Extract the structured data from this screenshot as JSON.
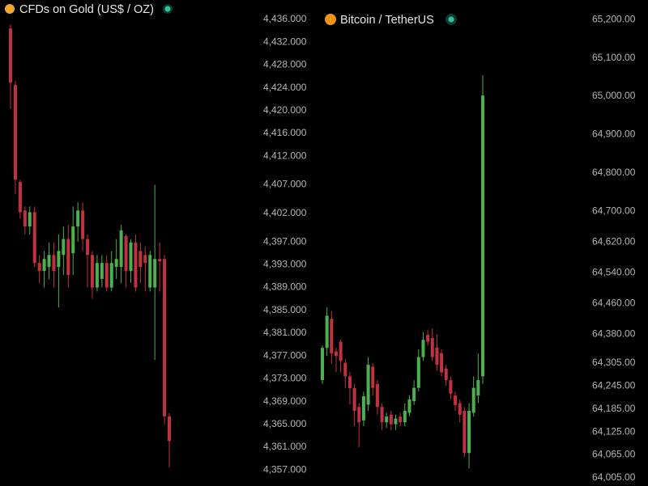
{
  "chart_data": [
    {
      "type": "candlestick",
      "title": "CFDs on Gold (US$ / OZ)",
      "up_color": "#4caf50",
      "down_color": "#c0323f",
      "ylim": [
        4354.2,
        4439.4
      ],
      "yticks": [
        {
          "value": 4436,
          "label": "4,436.000"
        },
        {
          "value": 4432,
          "label": "4,432.000"
        },
        {
          "value": 4428,
          "label": "4,428.000"
        },
        {
          "value": 4424,
          "label": "4,424.000"
        },
        {
          "value": 4420,
          "label": "4,420.000"
        },
        {
          "value": 4416,
          "label": "4,416.000"
        },
        {
          "value": 4412,
          "label": "4,412.000"
        },
        {
          "value": 4407,
          "label": "4,407.000"
        },
        {
          "value": 4402,
          "label": "4,402.000"
        },
        {
          "value": 4397,
          "label": "4,397.000"
        },
        {
          "value": 4393,
          "label": "4,393.000"
        },
        {
          "value": 4389,
          "label": "4,389.000"
        },
        {
          "value": 4385,
          "label": "4,385.000"
        },
        {
          "value": 4381,
          "label": "4,381.000"
        },
        {
          "value": 4377,
          "label": "4,377.000"
        },
        {
          "value": 4373,
          "label": "4,373.000"
        },
        {
          "value": 4369,
          "label": "4,369.000"
        },
        {
          "value": 4365,
          "label": "4,365.000"
        },
        {
          "value": 4361,
          "label": "4,361.000"
        },
        {
          "value": 4357,
          "label": "4,357.000"
        }
      ],
      "open": [
        4434.4,
        4424.5,
        4407.5,
        4402.5,
        4399.7,
        4402.2,
        4393.3,
        4391.9,
        4392.6,
        4394.7,
        4392.6,
        4394.7,
        4397.5,
        4395.0,
        4399.7,
        4402.5,
        4397.5,
        4394.7,
        4389.0,
        4390.5,
        4393.3,
        4389.0,
        4392.6,
        4392.6,
        4398.0,
        4391.9,
        4396.9,
        4395.4,
        4394.7,
        4389.0,
        4389.0,
        4394.0,
        4394.0,
        4366.4
      ],
      "high": [
        4435.1,
        4425.2,
        4407.9,
        4403.2,
        4403.2,
        4403.2,
        4394.7,
        4395.4,
        4396.9,
        4396.9,
        4398.3,
        4399.7,
        4400.0,
        4403.2,
        4403.9,
        4403.9,
        4398.3,
        4395.4,
        4394.7,
        4394.7,
        4394.7,
        4395.4,
        4397.5,
        4400.0,
        4398.3,
        4397.5,
        4398.3,
        4396.9,
        4396.2,
        4395.4,
        4407.0,
        4396.9,
        4394.7,
        4367.0
      ],
      "low": [
        4420.3,
        4405.4,
        4401.1,
        4398.3,
        4398.3,
        4392.6,
        4389.8,
        4389.0,
        4390.5,
        4389.0,
        4385.5,
        4391.2,
        4389.0,
        4391.2,
        4397.0,
        4395.4,
        4389.0,
        4387.0,
        4388.3,
        4389.0,
        4388.3,
        4388.3,
        4390.5,
        4389.8,
        4389.0,
        4389.8,
        4388.3,
        4389.8,
        4388.3,
        4388.3,
        4376.3,
        4388.3,
        4365.0,
        4357.4
      ],
      "close": [
        4424.9,
        4407.9,
        4402.2,
        4399.7,
        4402.2,
        4393.3,
        4391.9,
        4394.0,
        4394.7,
        4391.9,
        4395.4,
        4397.5,
        4391.2,
        4399.7,
        4402.5,
        4397.5,
        4394.7,
        4389.0,
        4393.3,
        4393.3,
        4389.0,
        4393.3,
        4394.0,
        4399.0,
        4391.9,
        4396.9,
        4389.0,
        4392.6,
        4393.3,
        4394.7,
        4394.0,
        4393.6,
        4366.4,
        4362.1
      ]
    },
    {
      "type": "candlestick",
      "title": "Bitcoin / TetherUS",
      "up_color": "#4caf50",
      "down_color": "#c0323f",
      "ylim": [
        63984,
        65251
      ],
      "yticks": [
        {
          "value": 65200,
          "label": "65,200.00"
        },
        {
          "value": 65100,
          "label": "65,100.00"
        },
        {
          "value": 65000,
          "label": "65,000.00"
        },
        {
          "value": 64900,
          "label": "64,900.00"
        },
        {
          "value": 64800,
          "label": "64,800.00"
        },
        {
          "value": 64700,
          "label": "64,700.00"
        },
        {
          "value": 64620,
          "label": "64,620.00"
        },
        {
          "value": 64540,
          "label": "64,540.00"
        },
        {
          "value": 64460,
          "label": "64,460.00"
        },
        {
          "value": 64380,
          "label": "64,380.00"
        },
        {
          "value": 64305,
          "label": "64,305.00"
        },
        {
          "value": 64245,
          "label": "64,245.00"
        },
        {
          "value": 64185,
          "label": "64,185.00"
        },
        {
          "value": 64125,
          "label": "64,125.00"
        },
        {
          "value": 64065,
          "label": "64,065.00"
        },
        {
          "value": 64005,
          "label": "64,005.00"
        }
      ],
      "open": [
        64260,
        64344,
        64420,
        64335,
        64360,
        64305,
        64270,
        64239,
        64190,
        64155,
        64196,
        64295,
        64250,
        64190,
        64150,
        64170,
        64145,
        64165,
        64150,
        64175,
        64205,
        64240,
        64320,
        64378,
        64370,
        64345,
        64330,
        64290,
        64260,
        64220,
        64200,
        64180,
        64070,
        64175,
        64220,
        64270
      ],
      "high": [
        64350,
        64450,
        64440,
        64345,
        64365,
        64315,
        64281,
        64250,
        64200,
        64230,
        64320,
        64305,
        64260,
        64200,
        64175,
        64180,
        64170,
        64175,
        64200,
        64220,
        64260,
        64340,
        64385,
        64390,
        64395,
        64380,
        64340,
        64300,
        64270,
        64230,
        64210,
        64190,
        64200,
        64270,
        64330,
        65055
      ],
      "low": [
        64250,
        64323,
        64302,
        64281,
        64280,
        64239,
        64196,
        64140,
        64085,
        64140,
        64180,
        64220,
        64170,
        64130,
        64135,
        64130,
        64130,
        64140,
        64140,
        64165,
        64195,
        64230,
        64310,
        64350,
        64310,
        64285,
        64270,
        64245,
        64210,
        64180,
        64150,
        64060,
        64030,
        64165,
        64200,
        64250
      ],
      "close": [
        64344,
        64428,
        64330,
        64323,
        64310,
        64270,
        64239,
        64180,
        64150,
        64218,
        64300,
        64240,
        64190,
        64150,
        64165,
        64145,
        64160,
        64150,
        64180,
        64210,
        64240,
        64320,
        64365,
        64360,
        64320,
        64300,
        64280,
        64260,
        64225,
        64195,
        64170,
        64070,
        64180,
        64240,
        64260,
        65002
      ]
    }
  ]
}
